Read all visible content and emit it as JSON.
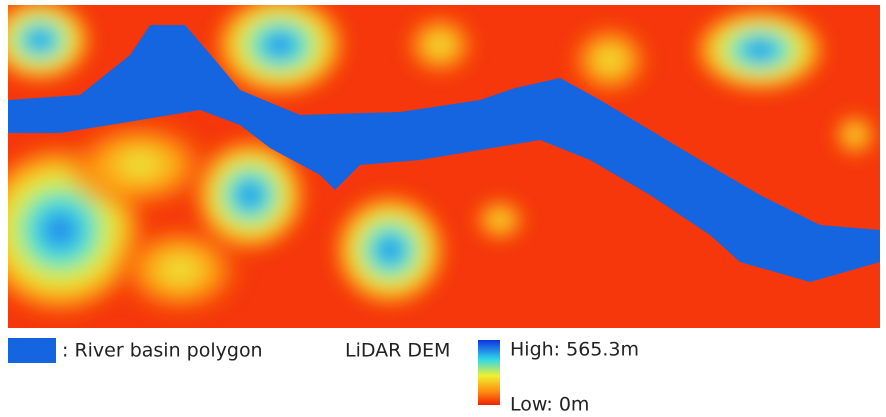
{
  "legend": {
    "river": ": River basin polygon",
    "dem_title": "LiDAR DEM",
    "high": "High: 565.3m",
    "low": "Low: 0m"
  }
}
